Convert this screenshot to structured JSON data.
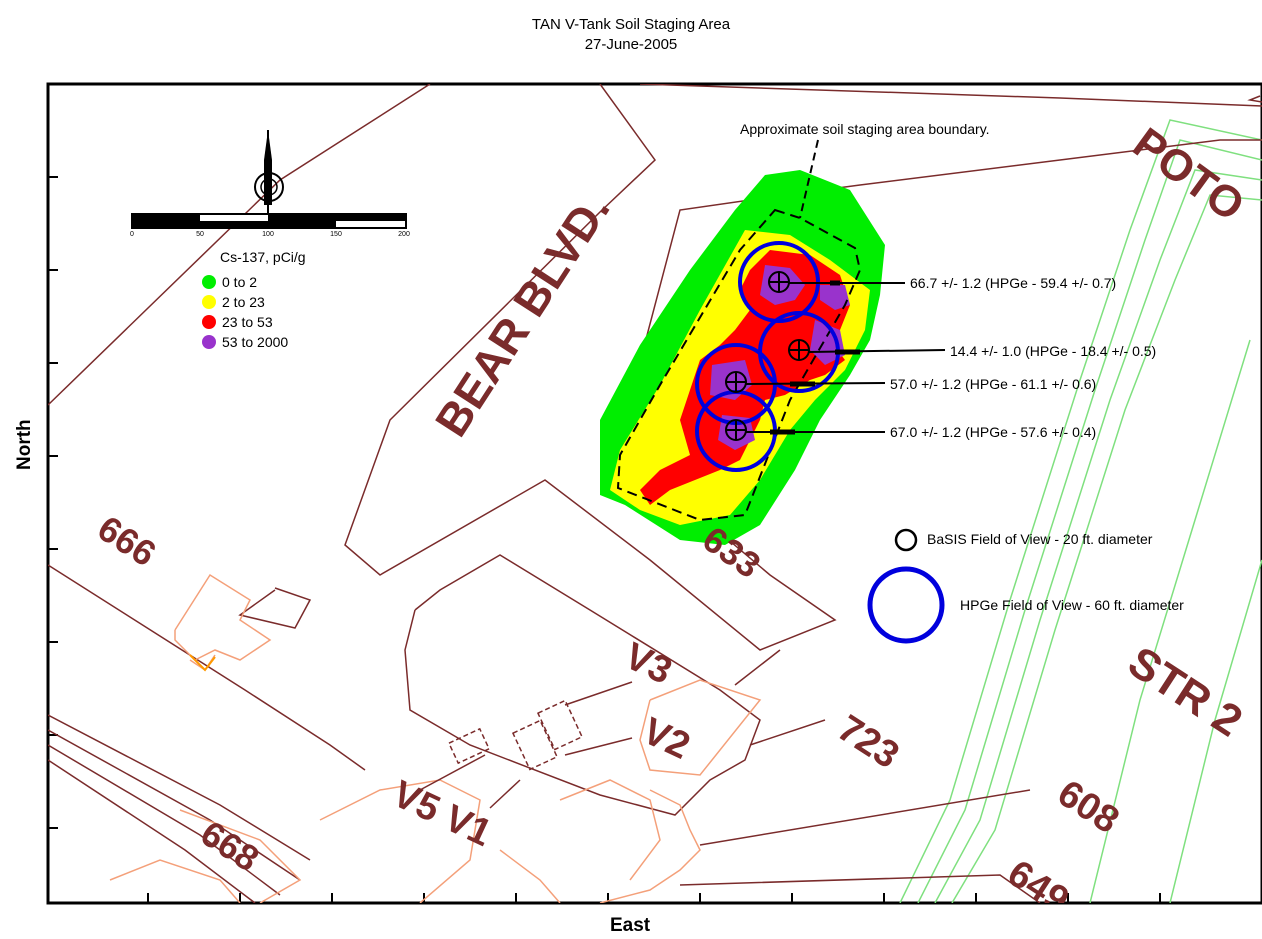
{
  "title": "TAN V-Tank Soil Staging Area",
  "date": "27-June-2005",
  "axes": {
    "x_label": "East",
    "y_label": "North"
  },
  "legend": {
    "title": "Cs-137, pCi/g",
    "items": [
      {
        "label": "0  to  2",
        "color": "#00ee00"
      },
      {
        "label": "2  to  23",
        "color": "#ffff00"
      },
      {
        "label": "23  to  53",
        "color": "#ff0000"
      },
      {
        "label": "53  to  2000",
        "color": "#9933cc"
      }
    ]
  },
  "scale_bar": {
    "ticks": [
      "0",
      "50",
      "100",
      "150",
      "200"
    ]
  },
  "north_arrow": {
    "icon": "north-arrow-icon"
  },
  "boundary_note": "Approximate soil staging area boundary.",
  "measurements": [
    "66.7 +/- 1.2  (HPGe - 59.4 +/- 0.7)",
    "14.4 +/- 1.0  (HPGe - 18.4 +/- 0.5)",
    "57.0 +/- 1.2  (HPGe - 61.1 +/- 0.6)",
    "67.0 +/- 1.2  (HPGe - 57.6 +/- 0.4)"
  ],
  "fov_legend": {
    "basis": "BaSIS Field of View - 20 ft. diameter",
    "hpge": "HPGe Field of View - 60 ft. diameter"
  },
  "map_labels": {
    "bear_blvd": "BEAR BLVD.",
    "poto": "POTO",
    "str": "STR 2",
    "b633": "633",
    "b666": "666",
    "b668": "668",
    "v3": "V3",
    "v2": "V2",
    "v5v1": "V5 V1",
    "b723": "723",
    "b608": "608",
    "b649": "649"
  },
  "colors": {
    "road": "#7a2b2b",
    "building": "#f4a07a",
    "rail": "#7fe07f",
    "hpge_ring": "#0000dd",
    "label": "#7a2b2b"
  }
}
